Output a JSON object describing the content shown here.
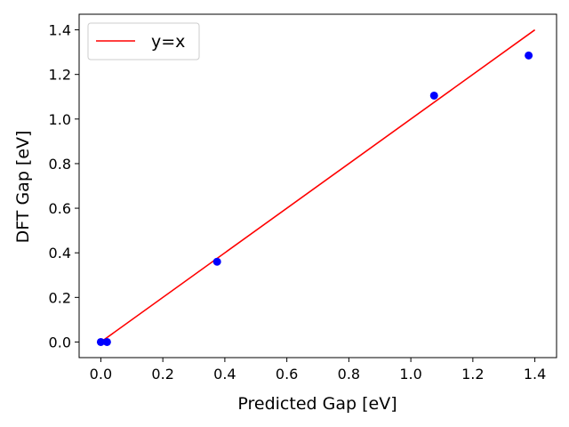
{
  "chart_data": {
    "type": "scatter",
    "xlabel": "Predicted Gap [eV]",
    "ylabel": "DFT Gap [eV]",
    "xlim": [
      -0.07,
      1.47
    ],
    "ylim": [
      -0.07,
      1.47
    ],
    "xticks": [
      "0.0",
      "0.2",
      "0.4",
      "0.6",
      "0.8",
      "1.0",
      "1.2",
      "1.4"
    ],
    "yticks": [
      "0.0",
      "0.2",
      "0.4",
      "0.6",
      "0.8",
      "1.0",
      "1.2",
      "1.4"
    ],
    "grid": false,
    "legend_position": "top-left",
    "series": [
      {
        "kind": "scatter",
        "color": "#0000ff",
        "points": [
          {
            "x": 0.0,
            "y": 0.0
          },
          {
            "x": 0.02,
            "y": 0.0
          },
          {
            "x": 0.375,
            "y": 0.36
          },
          {
            "x": 1.075,
            "y": 1.105
          },
          {
            "x": 1.38,
            "y": 1.285
          }
        ]
      },
      {
        "kind": "line",
        "name": "y=x",
        "color": "#ff0000",
        "points": [
          {
            "x": 0.0,
            "y": 0.0
          },
          {
            "x": 1.4,
            "y": 1.4
          }
        ]
      }
    ]
  }
}
